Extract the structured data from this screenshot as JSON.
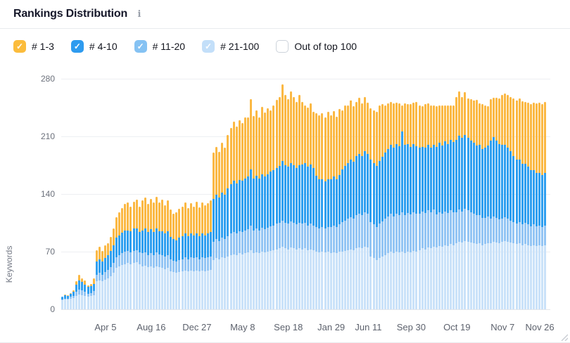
{
  "header": {
    "title": "Rankings Distribution",
    "info_icon": "i"
  },
  "legend": {
    "items": [
      {
        "label": "# 1-3",
        "checked": true,
        "color": "#fbbc3c",
        "check_glyph": "✓"
      },
      {
        "label": "# 4-10",
        "checked": true,
        "color": "#2e9bef",
        "check_glyph": "✓"
      },
      {
        "label": "# 11-20",
        "checked": true,
        "color": "#85c2f3",
        "check_glyph": "✓"
      },
      {
        "label": "# 21-100",
        "checked": true,
        "color": "#c3dff9",
        "check_glyph": "✓"
      },
      {
        "label": "Out of top 100",
        "checked": false,
        "color": "#ffffff",
        "check_glyph": ""
      }
    ]
  },
  "chart_data": {
    "type": "bar",
    "stacked": true,
    "title": "Rankings Distribution",
    "ylabel": "Keywords",
    "xlabel": "",
    "ylim": [
      0,
      280
    ],
    "yticks": [
      0,
      70,
      140,
      210,
      280
    ],
    "grid": true,
    "legend_position": "top",
    "series_order_bottom_to_top": [
      "# 21-100",
      "# 11-20",
      "# 4-10",
      "# 1-3"
    ],
    "segment_colors_bottom_to_top": [
      "#cae2f9",
      "#93c5f4",
      "#2f9ff0",
      "#fbb843"
    ],
    "x_tick_labels": [
      {
        "label": "Apr 5",
        "bar_index": 15
      },
      {
        "label": "Aug 16",
        "bar_index": 31
      },
      {
        "label": "Dec 27",
        "bar_index": 47
      },
      {
        "label": "May 8",
        "bar_index": 63
      },
      {
        "label": "Sep 18",
        "bar_index": 79
      },
      {
        "label": "Jan 29",
        "bar_index": 94
      },
      {
        "label": "Jun 11",
        "bar_index": 107
      },
      {
        "label": "Sep 30",
        "bar_index": 122
      },
      {
        "label": "Oct 19",
        "bar_index": 138
      },
      {
        "label": "Nov 7",
        "bar_index": 154
      },
      {
        "label": "Nov 26",
        "bar_index": 167
      }
    ],
    "bars_note": "each bar = [#21-100, #11-20, #4-10, #1-3] keyword counts, bottom to top",
    "bars": [
      [
        11,
        1,
        3,
        0
      ],
      [
        12,
        1,
        4,
        1
      ],
      [
        12,
        1,
        3,
        1
      ],
      [
        13,
        2,
        4,
        1
      ],
      [
        14,
        2,
        5,
        2
      ],
      [
        16,
        5,
        9,
        4
      ],
      [
        18,
        6,
        11,
        7
      ],
      [
        17,
        6,
        10,
        5
      ],
      [
        16,
        5,
        9,
        5
      ],
      [
        15,
        4,
        8,
        2
      ],
      [
        16,
        4,
        8,
        3
      ],
      [
        17,
        5,
        9,
        7
      ],
      [
        34,
        8,
        16,
        14
      ],
      [
        35,
        9,
        17,
        15
      ],
      [
        34,
        8,
        16,
        13
      ],
      [
        36,
        9,
        17,
        16
      ],
      [
        38,
        10,
        18,
        14
      ],
      [
        40,
        11,
        20,
        17
      ],
      [
        44,
        12,
        22,
        20
      ],
      [
        50,
        13,
        24,
        25
      ],
      [
        52,
        14,
        24,
        28
      ],
      [
        54,
        14,
        25,
        30
      ],
      [
        55,
        15,
        26,
        32
      ],
      [
        56,
        15,
        25,
        34
      ],
      [
        55,
        14,
        26,
        30
      ],
      [
        56,
        15,
        27,
        33
      ],
      [
        57,
        15,
        26,
        35
      ],
      [
        55,
        14,
        25,
        31
      ],
      [
        52,
        16,
        28,
        36
      ],
      [
        53,
        16,
        29,
        38
      ],
      [
        51,
        15,
        28,
        34
      ],
      [
        52,
        16,
        29,
        37
      ],
      [
        50,
        16,
        28,
        36
      ],
      [
        52,
        17,
        29,
        39
      ],
      [
        51,
        16,
        28,
        35
      ],
      [
        50,
        16,
        29,
        38
      ],
      [
        49,
        15,
        28,
        34
      ],
      [
        50,
        16,
        29,
        37
      ],
      [
        46,
        15,
        27,
        33
      ],
      [
        45,
        14,
        26,
        31
      ],
      [
        44,
        14,
        26,
        34
      ],
      [
        45,
        15,
        27,
        35
      ],
      [
        46,
        15,
        28,
        36
      ],
      [
        47,
        16,
        29,
        38
      ],
      [
        46,
        15,
        28,
        34
      ],
      [
        47,
        16,
        29,
        37
      ],
      [
        46,
        16,
        28,
        35
      ],
      [
        47,
        16,
        29,
        39
      ],
      [
        46,
        15,
        28,
        35
      ],
      [
        47,
        16,
        29,
        38
      ],
      [
        46,
        16,
        28,
        36
      ],
      [
        47,
        16,
        29,
        37
      ],
      [
        48,
        16,
        30,
        38
      ],
      [
        60,
        22,
        52,
        56
      ],
      [
        62,
        23,
        54,
        58
      ],
      [
        61,
        22,
        53,
        55
      ],
      [
        63,
        24,
        55,
        60
      ],
      [
        62,
        23,
        54,
        57
      ],
      [
        64,
        25,
        58,
        65
      ],
      [
        66,
        26,
        60,
        68
      ],
      [
        67,
        27,
        62,
        72
      ],
      [
        66,
        26,
        61,
        69
      ],
      [
        68,
        27,
        62,
        73
      ],
      [
        67,
        27,
        62,
        70
      ],
      [
        68,
        28,
        63,
        74
      ],
      [
        69,
        28,
        64,
        72
      ],
      [
        72,
        30,
        68,
        85
      ],
      [
        68,
        28,
        63,
        76
      ],
      [
        69,
        29,
        64,
        80
      ],
      [
        68,
        28,
        63,
        74
      ],
      [
        70,
        29,
        65,
        82
      ],
      [
        69,
        28,
        64,
        78
      ],
      [
        70,
        29,
        65,
        80
      ],
      [
        71,
        30,
        66,
        75
      ],
      [
        72,
        30,
        67,
        79
      ],
      [
        73,
        31,
        68,
        82
      ],
      [
        74,
        31,
        69,
        84
      ],
      [
        76,
        32,
        72,
        93
      ],
      [
        74,
        31,
        70,
        85
      ],
      [
        73,
        31,
        69,
        82
      ],
      [
        75,
        32,
        71,
        87
      ],
      [
        74,
        31,
        70,
        83
      ],
      [
        73,
        30,
        69,
        80
      ],
      [
        74,
        31,
        70,
        85
      ],
      [
        73,
        31,
        72,
        76
      ],
      [
        74,
        31,
        73,
        70
      ],
      [
        72,
        30,
        71,
        72
      ],
      [
        73,
        31,
        72,
        74
      ],
      [
        72,
        30,
        70,
        68
      ],
      [
        70,
        30,
        62,
        76
      ],
      [
        69,
        29,
        60,
        78
      ],
      [
        70,
        30,
        58,
        80
      ],
      [
        69,
        29,
        57,
        78
      ],
      [
        70,
        30,
        58,
        82
      ],
      [
        68,
        32,
        58,
        78
      ],
      [
        69,
        33,
        59,
        80
      ],
      [
        68,
        32,
        58,
        76
      ],
      [
        70,
        33,
        60,
        80
      ],
      [
        70,
        36,
        64,
        72
      ],
      [
        71,
        37,
        66,
        74
      ],
      [
        72,
        38,
        68,
        70
      ],
      [
        73,
        39,
        70,
        72
      ],
      [
        72,
        38,
        69,
        68
      ],
      [
        74,
        40,
        72,
        66
      ],
      [
        75,
        41,
        73,
        68
      ],
      [
        74,
        40,
        72,
        64
      ],
      [
        76,
        42,
        74,
        66
      ],
      [
        75,
        41,
        73,
        62
      ],
      [
        64,
        42,
        76,
        62
      ],
      [
        62,
        41,
        75,
        64
      ],
      [
        60,
        40,
        74,
        66
      ],
      [
        62,
        42,
        76,
        68
      ],
      [
        64,
        43,
        78,
        64
      ],
      [
        66,
        44,
        80,
        58
      ],
      [
        68,
        45,
        82,
        55
      ],
      [
        70,
        46,
        84,
        52
      ],
      [
        68,
        45,
        83,
        54
      ],
      [
        70,
        46,
        85,
        50
      ],
      [
        69,
        45,
        84,
        52
      ],
      [
        70,
        48,
        98,
        32
      ],
      [
        68,
        46,
        86,
        50
      ],
      [
        70,
        47,
        84,
        48
      ],
      [
        69,
        46,
        82,
        52
      ],
      [
        71,
        47,
        83,
        50
      ],
      [
        70,
        46,
        82,
        54
      ],
      [
        72,
        44,
        80,
        52
      ],
      [
        74,
        45,
        78,
        50
      ],
      [
        73,
        44,
        79,
        53
      ],
      [
        75,
        45,
        80,
        50
      ],
      [
        74,
        44,
        78,
        52
      ],
      [
        76,
        45,
        79,
        48
      ],
      [
        75,
        40,
        82,
        50
      ],
      [
        77,
        41,
        84,
        46
      ],
      [
        76,
        40,
        83,
        49
      ],
      [
        78,
        41,
        85,
        44
      ],
      [
        77,
        40,
        84,
        47
      ],
      [
        79,
        41,
        86,
        42
      ],
      [
        78,
        40,
        85,
        45
      ],
      [
        80,
        38,
        88,
        52
      ],
      [
        82,
        39,
        90,
        54
      ],
      [
        81,
        38,
        89,
        50
      ],
      [
        83,
        39,
        90,
        52
      ],
      [
        82,
        38,
        88,
        48
      ],
      [
        81,
        37,
        87,
        50
      ],
      [
        80,
        36,
        86,
        52
      ],
      [
        79,
        35,
        85,
        55
      ],
      [
        80,
        34,
        86,
        50
      ],
      [
        78,
        33,
        84,
        54
      ],
      [
        79,
        32,
        85,
        52
      ],
      [
        80,
        33,
        86,
        48
      ],
      [
        80,
        30,
        95,
        50
      ],
      [
        82,
        31,
        96,
        48
      ],
      [
        81,
        30,
        94,
        52
      ],
      [
        80,
        29,
        92,
        55
      ],
      [
        82,
        28,
        90,
        60
      ],
      [
        83,
        29,
        88,
        62
      ],
      [
        82,
        28,
        86,
        64
      ],
      [
        81,
        27,
        84,
        66
      ],
      [
        80,
        26,
        80,
        70
      ],
      [
        79,
        25,
        78,
        72
      ],
      [
        80,
        26,
        76,
        74
      ],
      [
        78,
        25,
        74,
        76
      ],
      [
        79,
        26,
        72,
        75
      ],
      [
        78,
        25,
        70,
        78
      ],
      [
        77,
        24,
        68,
        80
      ],
      [
        78,
        25,
        66,
        82
      ],
      [
        77,
        24,
        65,
        84
      ],
      [
        78,
        24,
        64,
        85
      ],
      [
        77,
        23,
        63,
        86
      ],
      [
        78,
        24,
        64,
        86
      ]
    ]
  }
}
